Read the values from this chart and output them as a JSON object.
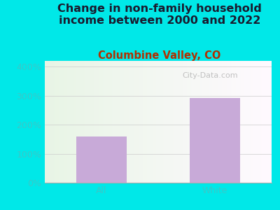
{
  "title": "Change in non-family household\nincome between 2000 and 2022",
  "subtitle": "Columbine Valley, CO",
  "categories": [
    "All",
    "White"
  ],
  "values": [
    160,
    293
  ],
  "bar_color": "#c8aad8",
  "title_color": "#1a1a2e",
  "subtitle_color": "#b03000",
  "tick_label_color": "#3ac8c8",
  "xticklabel_color": "#3ac8c8",
  "background_outer": "#00e8e8",
  "plot_bg_topleft": "#e8f5e0",
  "plot_bg_topright": "#f5faff",
  "plot_bg_bottom": "#edf8ec",
  "yticks": [
    0,
    100,
    200,
    300,
    400
  ],
  "ytick_labels": [
    "0%",
    "100%",
    "200%",
    "300%",
    "400%"
  ],
  "ylim": [
    0,
    420
  ],
  "watermark": "City-Data.com",
  "title_fontsize": 11.5,
  "subtitle_fontsize": 10.5,
  "tick_fontsize": 9,
  "bar_width": 0.45
}
